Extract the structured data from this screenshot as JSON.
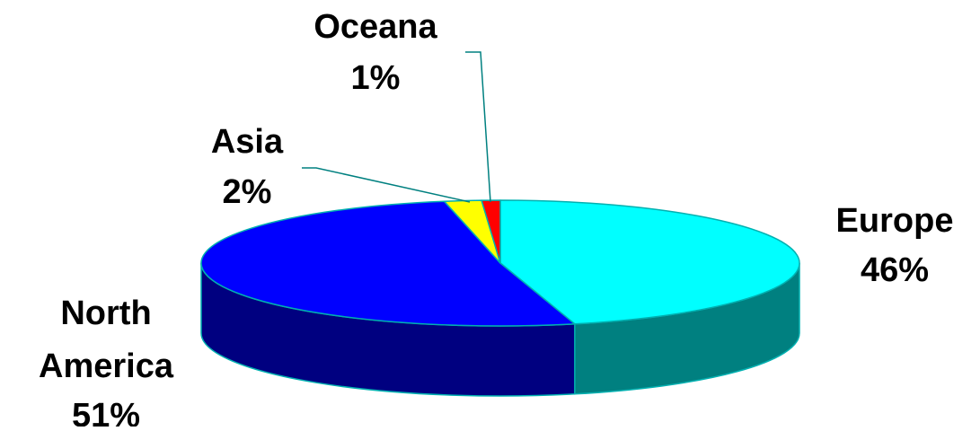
{
  "chart_data": {
    "type": "pie",
    "style": "3d",
    "title": "",
    "slices": [
      {
        "category": "Europe",
        "value": 46,
        "label": "46%",
        "color": "#00FFFF",
        "side_color": "#008080",
        "label_lines": [
          "Europe",
          "46%"
        ]
      },
      {
        "category": "North America",
        "value": 51,
        "label": "51%",
        "color": "#0000FF",
        "side_color": "#000080",
        "label_lines": [
          "North",
          "America",
          "51%"
        ]
      },
      {
        "category": "Asia",
        "value": 2,
        "label": "2%",
        "color": "#FFFF00",
        "side_color": "#808000",
        "label_lines": [
          "Asia",
          "2%"
        ]
      },
      {
        "category": "Oceana",
        "value": 1,
        "label": "1%",
        "color": "#FF0000",
        "side_color": "#800000",
        "label_lines": [
          "Oceana",
          "1%"
        ]
      }
    ],
    "outline_color": "#00B0B0",
    "leader_line_color": "#008080"
  }
}
